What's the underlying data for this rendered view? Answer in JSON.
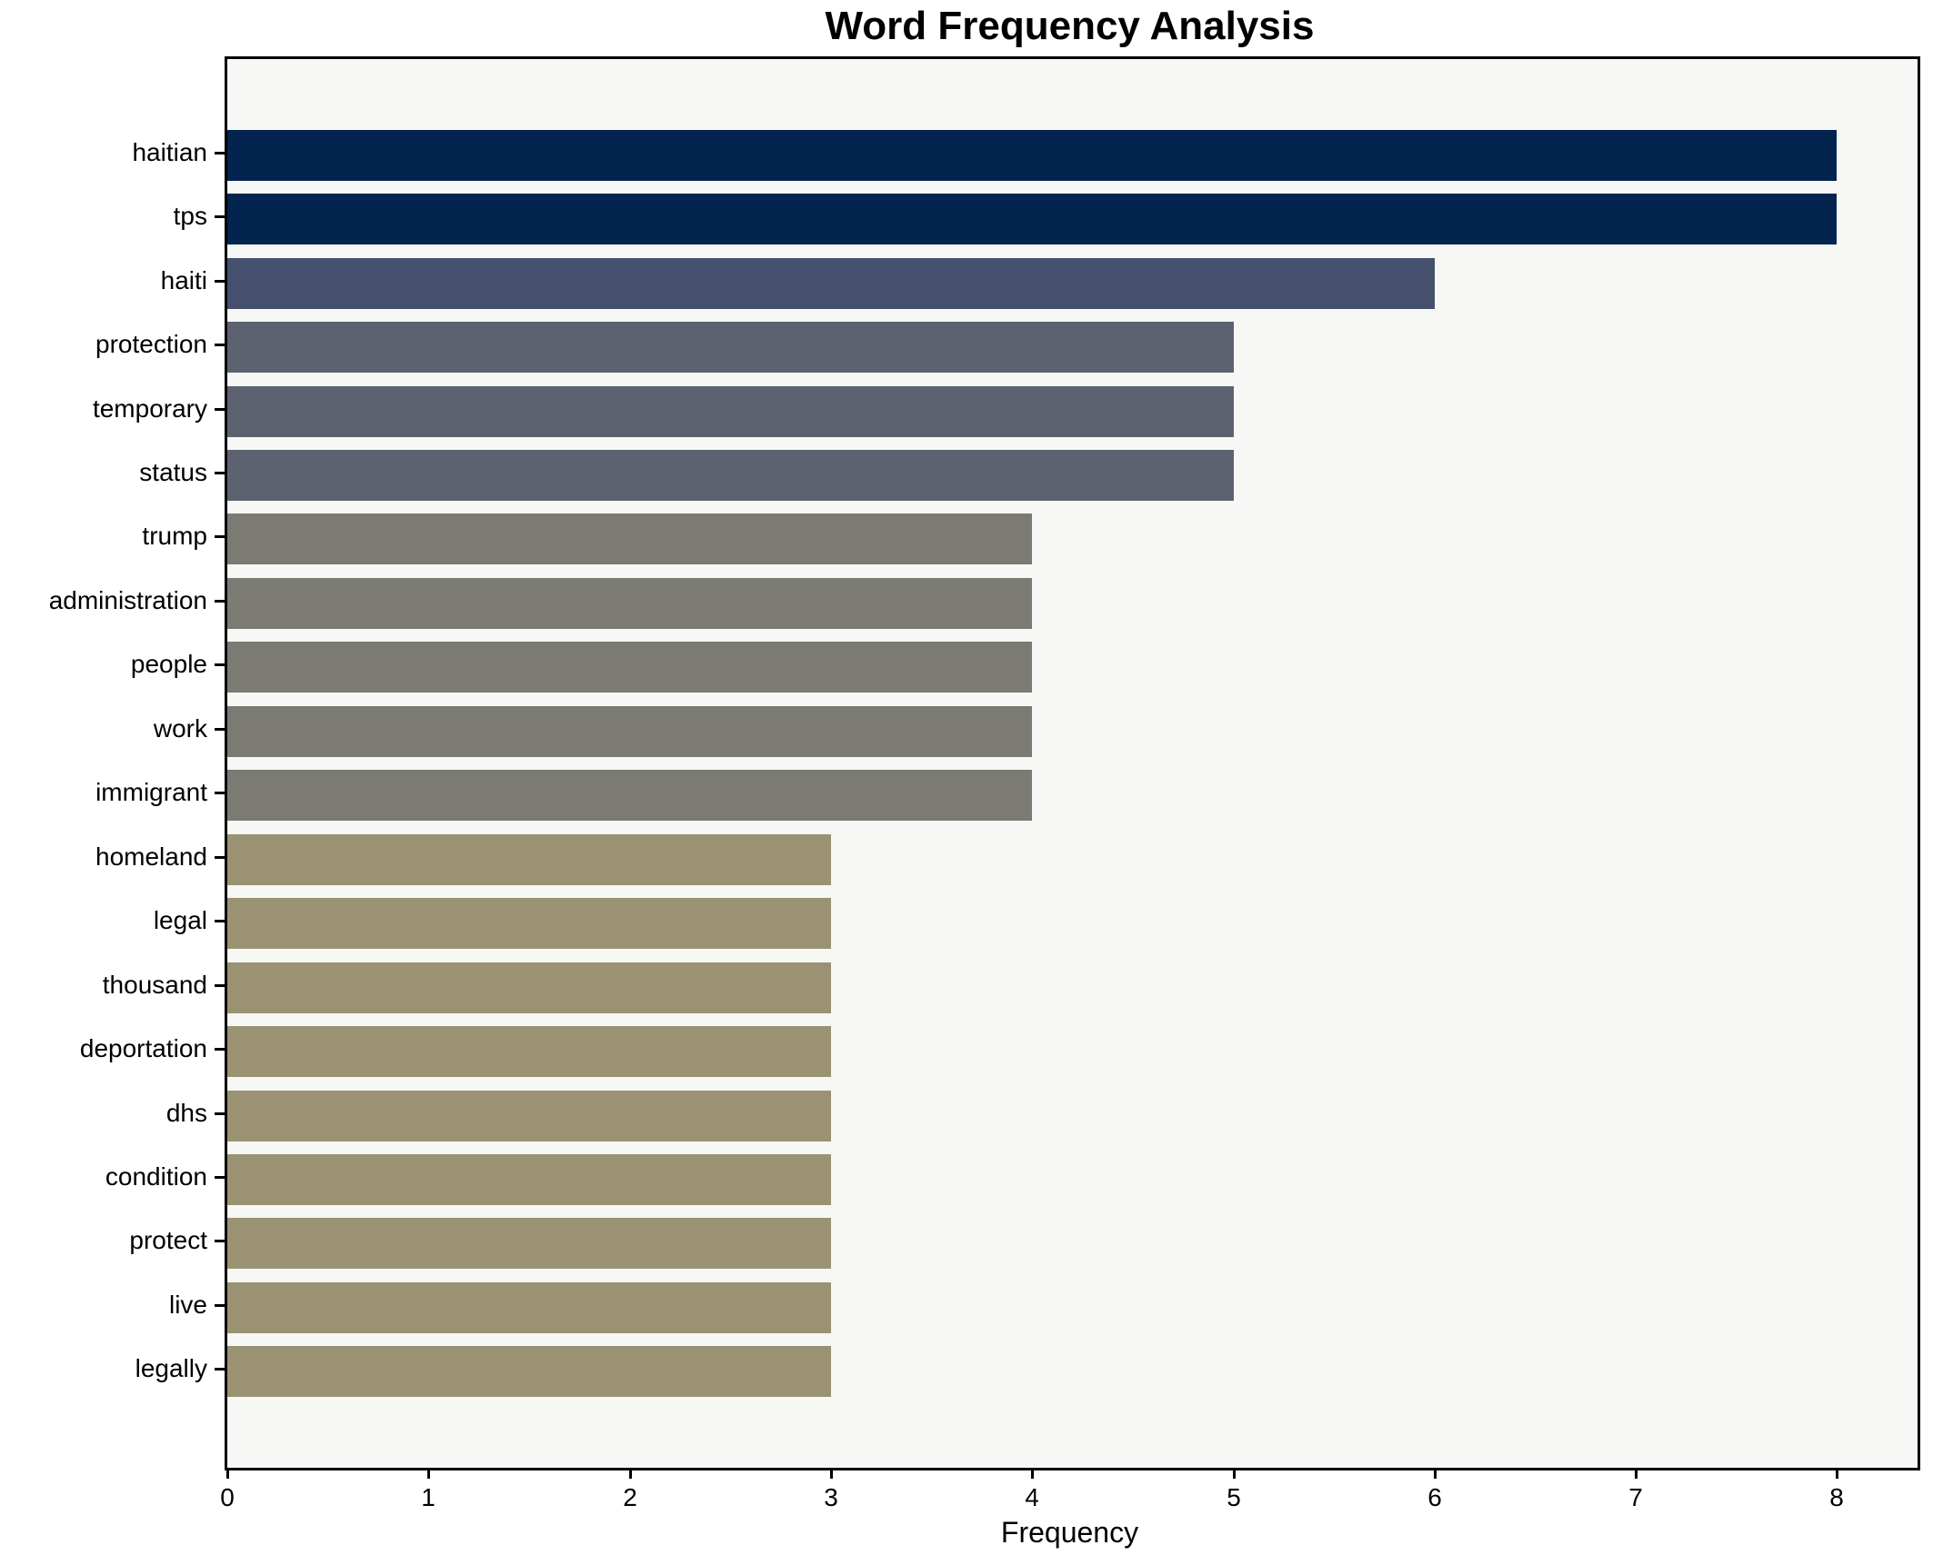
{
  "chart_data": {
    "type": "bar",
    "orientation": "horizontal",
    "title": "Word Frequency Analysis",
    "xlabel": "Frequency",
    "ylabel": "",
    "categories": [
      "haitian",
      "tps",
      "haiti",
      "protection",
      "temporary",
      "status",
      "trump",
      "administration",
      "people",
      "work",
      "immigrant",
      "homeland",
      "legal",
      "thousand",
      "deportation",
      "dhs",
      "condition",
      "protect",
      "live",
      "legally"
    ],
    "values": [
      8,
      8,
      6,
      5,
      5,
      5,
      4,
      4,
      4,
      4,
      4,
      3,
      3,
      3,
      3,
      3,
      3,
      3,
      3,
      3
    ],
    "bar_colors": [
      "#02244e",
      "#02244e",
      "#454f6e",
      "#5d6270",
      "#5d6270",
      "#5d6270",
      "#7b7a73",
      "#7b7a73",
      "#7b7a73",
      "#7b7a73",
      "#7b7a73",
      "#9a9273",
      "#9a9273",
      "#9a9273",
      "#9a9273",
      "#9a9273",
      "#9a9273",
      "#9a9273",
      "#9a9273",
      "#9a9273"
    ],
    "x_ticks": [
      0,
      1,
      2,
      3,
      4,
      5,
      6,
      7,
      8
    ],
    "xlim": [
      0,
      8.4
    ],
    "grid": false,
    "legend": "none",
    "plot_background": "#f7f7f6",
    "figure_background": "#ffffff",
    "spine_color": "#000000"
  }
}
